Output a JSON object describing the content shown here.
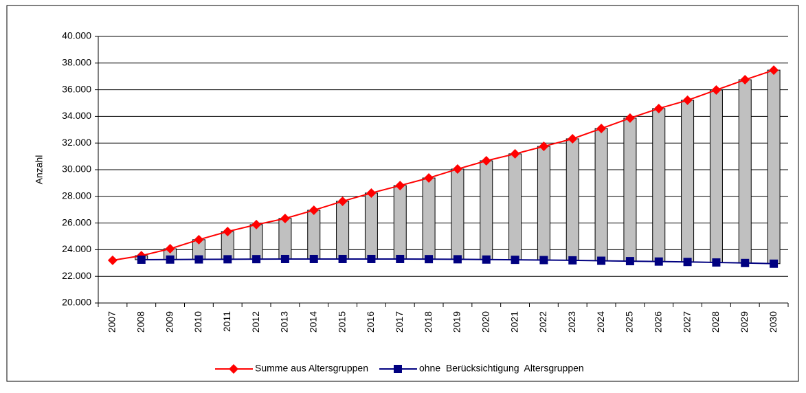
{
  "chart_data": {
    "type": "line",
    "up_down_bars": true,
    "bar_color": "#c0c0c0",
    "y_label": "Anzahl",
    "categories": [
      "2007",
      "2008",
      "2009",
      "2010",
      "2011",
      "2012",
      "2013",
      "2014",
      "2015",
      "2016",
      "2017",
      "2018",
      "2019",
      "2020",
      "2021",
      "2022",
      "2023",
      "2024",
      "2025",
      "2026",
      "2027",
      "2028",
      "2029",
      "2030"
    ],
    "series": [
      {
        "name": "Summe aus Altersgruppen",
        "color": "#ff0000",
        "marker": "diamond",
        "values": [
          23200,
          23550,
          24070,
          24750,
          25360,
          25880,
          26340,
          26960,
          27630,
          28250,
          28810,
          29380,
          30050,
          30670,
          31190,
          31750,
          32320,
          33090,
          33870,
          34590,
          35210,
          35980,
          36750,
          37470
        ]
      },
      {
        "name": "ohne  Berücksichtigung  Altersgruppen",
        "color": "#000080",
        "marker": "square",
        "values": [
          null,
          23250,
          23260,
          23270,
          23280,
          23290,
          23300,
          23300,
          23300,
          23300,
          23300,
          23290,
          23280,
          23260,
          23240,
          23220,
          23200,
          23170,
          23140,
          23110,
          23080,
          23040,
          23000,
          22950
        ]
      }
    ],
    "ylim": [
      20000,
      40000
    ],
    "yticks": [
      {
        "value": 20000,
        "label": "20.000"
      },
      {
        "value": 22000,
        "label": "22.000"
      },
      {
        "value": 24000,
        "label": "24.000"
      },
      {
        "value": 26000,
        "label": "26.000"
      },
      {
        "value": 28000,
        "label": "28.000"
      },
      {
        "value": 30000,
        "label": "30.000"
      },
      {
        "value": 32000,
        "label": "32.000"
      },
      {
        "value": 34000,
        "label": "34.000"
      },
      {
        "value": 36000,
        "label": "36.000"
      },
      {
        "value": 38000,
        "label": "38.000"
      },
      {
        "value": 40000,
        "label": "40.000"
      }
    ],
    "grid": true,
    "legend": "bottom"
  }
}
